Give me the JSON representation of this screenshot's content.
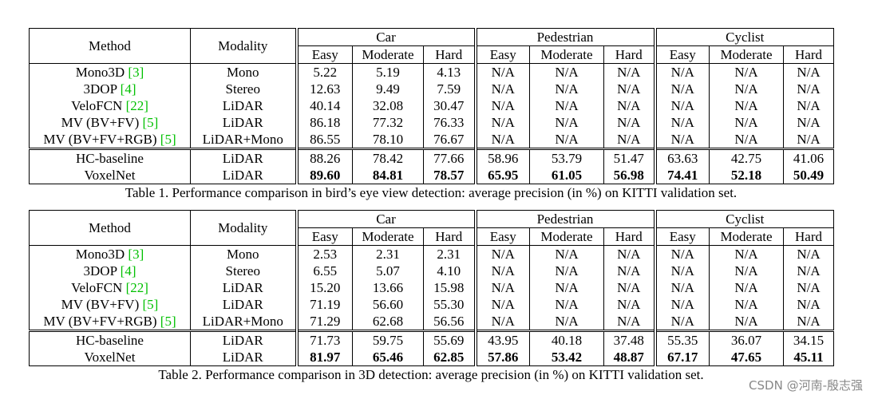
{
  "tables": [
    {
      "header": {
        "method": "Method",
        "modality": "Modality",
        "groups": [
          {
            "name": "Car",
            "columns": [
              "Easy",
              "Moderate",
              "Hard"
            ]
          },
          {
            "name": "Pedestrian",
            "columns": [
              "Easy",
              "Moderate",
              "Hard"
            ]
          },
          {
            "name": "Cyclist",
            "columns": [
              "Easy",
              "Moderate",
              "Hard"
            ]
          }
        ]
      },
      "rows": [
        {
          "method": "Mono3D",
          "cite": "[3]",
          "modality": "Mono",
          "values": [
            "5.22",
            "5.19",
            "4.13",
            "N/A",
            "N/A",
            "N/A",
            "N/A",
            "N/A",
            "N/A"
          ]
        },
        {
          "method": "3DOP",
          "cite": "[4]",
          "modality": "Stereo",
          "values": [
            "12.63",
            "9.49",
            "7.59",
            "N/A",
            "N/A",
            "N/A",
            "N/A",
            "N/A",
            "N/A"
          ]
        },
        {
          "method": "VeloFCN",
          "cite": "[22]",
          "modality": "LiDAR",
          "values": [
            "40.14",
            "32.08",
            "30.47",
            "N/A",
            "N/A",
            "N/A",
            "N/A",
            "N/A",
            "N/A"
          ]
        },
        {
          "method": "MV (BV+FV)",
          "cite": "[5]",
          "modality": "LiDAR",
          "values": [
            "86.18",
            "77.32",
            "76.33",
            "N/A",
            "N/A",
            "N/A",
            "N/A",
            "N/A",
            "N/A"
          ]
        },
        {
          "method": "MV (BV+FV+RGB)",
          "cite": "[5]",
          "modality": "LiDAR+Mono",
          "values": [
            "86.55",
            "78.10",
            "76.67",
            "N/A",
            "N/A",
            "N/A",
            "N/A",
            "N/A",
            "N/A"
          ]
        },
        {
          "method": "HC-baseline",
          "modality": "LiDAR",
          "values": [
            "88.26",
            "78.42",
            "77.66",
            "58.96",
            "53.79",
            "51.47",
            "63.63",
            "42.75",
            "41.06"
          ]
        },
        {
          "method": "VoxelNet",
          "modality": "LiDAR",
          "bold": true,
          "values": [
            "89.60",
            "84.81",
            "78.57",
            "65.95",
            "61.05",
            "56.98",
            "74.41",
            "52.18",
            "50.49"
          ]
        }
      ],
      "caption": "Table 1. Performance comparison in bird’s eye view detection: average precision (in %) on KITTI validation set."
    },
    {
      "header": {
        "method": "Method",
        "modality": "Modality",
        "groups": [
          {
            "name": "Car",
            "columns": [
              "Easy",
              "Moderate",
              "Hard"
            ]
          },
          {
            "name": "Pedestrian",
            "columns": [
              "Easy",
              "Moderate",
              "Hard"
            ]
          },
          {
            "name": "Cyclist",
            "columns": [
              "Easy",
              "Moderate",
              "Hard"
            ]
          }
        ]
      },
      "rows": [
        {
          "method": "Mono3D",
          "cite": "[3]",
          "modality": "Mono",
          "values": [
            "2.53",
            "2.31",
            "2.31",
            "N/A",
            "N/A",
            "N/A",
            "N/A",
            "N/A",
            "N/A"
          ]
        },
        {
          "method": "3DOP",
          "cite": "[4]",
          "modality": "Stereo",
          "values": [
            "6.55",
            "5.07",
            "4.10",
            "N/A",
            "N/A",
            "N/A",
            "N/A",
            "N/A",
            "N/A"
          ]
        },
        {
          "method": "VeloFCN",
          "cite": "[22]",
          "modality": "LiDAR",
          "values": [
            "15.20",
            "13.66",
            "15.98",
            "N/A",
            "N/A",
            "N/A",
            "N/A",
            "N/A",
            "N/A"
          ]
        },
        {
          "method": "MV (BV+FV)",
          "cite": "[5]",
          "modality": "LiDAR",
          "values": [
            "71.19",
            "56.60",
            "55.30",
            "N/A",
            "N/A",
            "N/A",
            "N/A",
            "N/A",
            "N/A"
          ]
        },
        {
          "method": "MV (BV+FV+RGB)",
          "cite": "[5]",
          "modality": "LiDAR+Mono",
          "values": [
            "71.29",
            "62.68",
            "56.56",
            "N/A",
            "N/A",
            "N/A",
            "N/A",
            "N/A",
            "N/A"
          ]
        },
        {
          "method": "HC-baseline",
          "modality": "LiDAR",
          "values": [
            "71.73",
            "59.75",
            "55.69",
            "43.95",
            "40.18",
            "37.48",
            "55.35",
            "36.07",
            "34.15"
          ]
        },
        {
          "method": "VoxelNet",
          "modality": "LiDAR",
          "bold": true,
          "values": [
            "81.97",
            "65.46",
            "62.85",
            "57.86",
            "53.42",
            "48.87",
            "67.17",
            "47.65",
            "45.11"
          ]
        }
      ],
      "caption": "Table 2. Performance comparison in 3D detection: average precision (in %) on KITTI validation set."
    }
  ],
  "watermark": "CSDN @河南-殷志强"
}
